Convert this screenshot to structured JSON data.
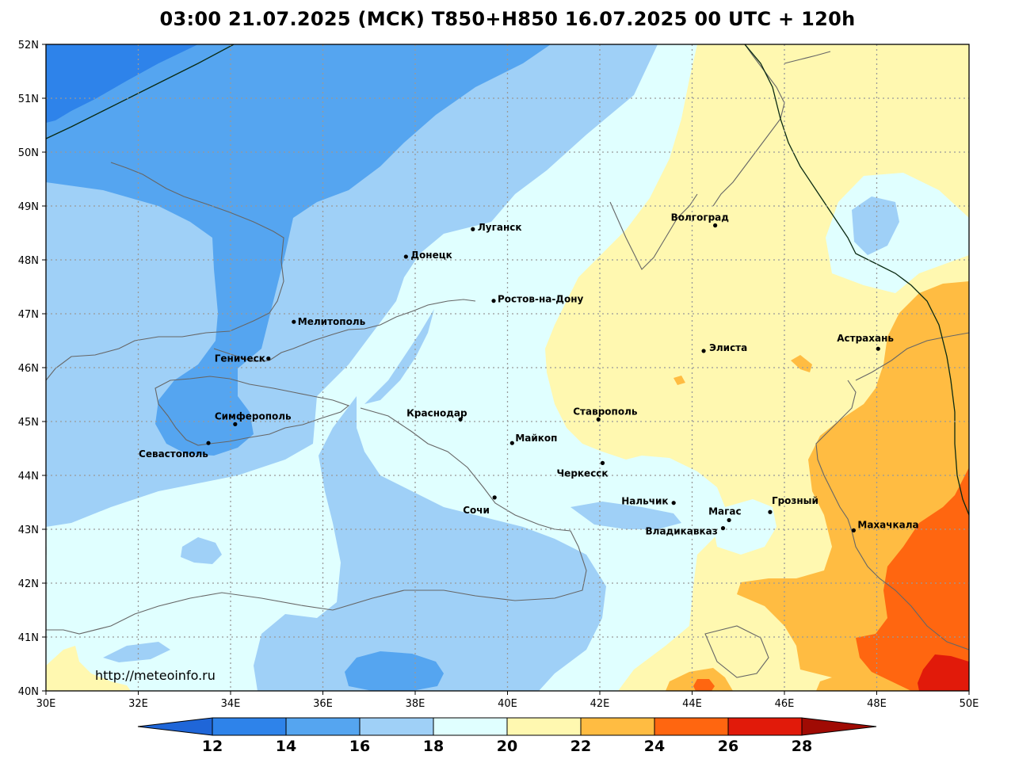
{
  "title": "03:00 21.07.2025 (МСК) T850+H850 16.07.2025 00 UTC + 120h",
  "url": "http://meteoinfo.ru",
  "colors": {
    "c10_12": "#1f66d8",
    "c12_14": "#2e83ea",
    "c14_16": "#55a5f0",
    "c16_18": "#9fd0f7",
    "c18_20": "#e0ffff",
    "c20_22": "#fff8b0",
    "c22_24": "#ffbc42",
    "c24_26": "#ff6610",
    "c26_28": "#e11a0a",
    "c28_30": "#a00b04",
    "coast": "#666666",
    "border": "#0a2a12"
  },
  "axes": {
    "lon_ticks": [
      "30E",
      "32E",
      "34E",
      "36E",
      "38E",
      "40E",
      "42E",
      "44E",
      "46E",
      "48E",
      "50E"
    ],
    "lat_ticks": [
      "52N",
      "51N",
      "50N",
      "49N",
      "48N",
      "47N",
      "46N",
      "45N",
      "44N",
      "43N",
      "42N",
      "41N",
      "40N"
    ]
  },
  "legend": {
    "labels": [
      "12",
      "14",
      "16",
      "18",
      "20",
      "22",
      "24",
      "26",
      "28"
    ]
  },
  "cities": [
    {
      "name": "Луганск",
      "lon": 39.25,
      "lat": 48.57
    },
    {
      "name": "Донецк",
      "lon": 37.8,
      "lat": 48.06
    },
    {
      "name": "Волгоград",
      "lon": 44.5,
      "lat": 48.64
    },
    {
      "name": "Ростов-на-Дону",
      "lon": 39.7,
      "lat": 47.24
    },
    {
      "name": "Мелитополь",
      "lon": 35.37,
      "lat": 46.85
    },
    {
      "name": "Геническ",
      "lon": 34.82,
      "lat": 46.17
    },
    {
      "name": "Элиста",
      "lon": 44.25,
      "lat": 46.31
    },
    {
      "name": "Астрахань",
      "lon": 48.03,
      "lat": 46.35
    },
    {
      "name": "Симферополь",
      "lon": 34.1,
      "lat": 44.95
    },
    {
      "name": "Севастополь",
      "lon": 33.52,
      "lat": 44.6
    },
    {
      "name": "Краснодар",
      "lon": 38.98,
      "lat": 45.04
    },
    {
      "name": "Ставрополь",
      "lon": 41.97,
      "lat": 45.04
    },
    {
      "name": "Майкоп",
      "lon": 40.1,
      "lat": 44.6
    },
    {
      "name": "Черкесск",
      "lon": 42.06,
      "lat": 44.23
    },
    {
      "name": "Нальчик",
      "lon": 43.6,
      "lat": 43.49
    },
    {
      "name": "Сочи",
      "lon": 39.72,
      "lat": 43.59
    },
    {
      "name": "Магас",
      "lon": 44.8,
      "lat": 43.17
    },
    {
      "name": "Владикавказ",
      "lon": 44.67,
      "lat": 43.02
    },
    {
      "name": "Грозный",
      "lon": 45.69,
      "lat": 43.32
    },
    {
      "name": "Махачкала",
      "lon": 47.5,
      "lat": 42.98
    }
  ]
}
